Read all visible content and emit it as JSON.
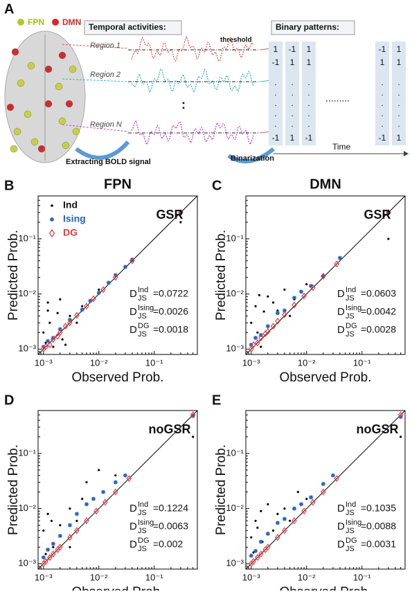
{
  "panel_a": {
    "label": "A",
    "legend": [
      "FPN",
      "DMN"
    ],
    "temporal_title": "Temporal activities:",
    "binary_title": "Binary patterns:",
    "regions": [
      "Region 1",
      "Region 2",
      "Region N"
    ],
    "threshold": "threshold",
    "extract": "Extracting BOLD signal",
    "binarization": "Binarization",
    "time": "Time",
    "vdots": ":",
    "hdots": ".........",
    "dot": ".",
    "matrix_left": [
      [
        "1",
        "-1",
        "1"
      ],
      [
        "-1",
        "1",
        "1"
      ],
      [
        "-1",
        "1",
        "-1"
      ]
    ],
    "matrix_right": [
      [
        "-1",
        "1"
      ],
      [
        "1",
        "1"
      ],
      [
        "-1",
        "1"
      ]
    ]
  },
  "chart_data": [
    {
      "type": "scatter",
      "panel": "B",
      "title": "FPN",
      "subtitle": "GSR",
      "xlabel": "Observed Prob.",
      "ylabel": "Predicted Prob.",
      "log_scale": true,
      "legend": true,
      "xlim": [
        0.0008,
        0.6
      ],
      "ylim": [
        0.0008,
        0.6
      ],
      "xticks": [
        {
          "value": 0.001,
          "label": "10⁻³"
        },
        {
          "value": 0.01,
          "label": "10⁻²"
        },
        {
          "value": 0.1,
          "label": "10⁻¹"
        }
      ],
      "yticks": [
        {
          "value": 0.001,
          "label": "10⁻³"
        },
        {
          "value": 0.01,
          "label": "10⁻²"
        },
        {
          "value": 0.1,
          "label": "10⁻¹"
        }
      ],
      "series": [
        {
          "name": "Ind",
          "color": "#000000",
          "marker": "dot",
          "x": [
            0.001,
            0.0012,
            0.0015,
            0.002,
            0.0013,
            0.0011,
            0.0025,
            0.003,
            0.004,
            0.005,
            0.0012,
            0.01,
            0.04,
            0.3,
            0.0018,
            0.0022
          ],
          "y": [
            0.002,
            0.005,
            0.0011,
            0.008,
            0.003,
            0.0013,
            0.0012,
            0.004,
            0.003,
            0.006,
            0.007,
            0.012,
            0.04,
            0.2,
            0.0045,
            0.0015
          ]
        },
        {
          "name": "Ising",
          "color": "#2563c6",
          "marker": "asterisk",
          "x": [
            0.001,
            0.0012,
            0.0015,
            0.002,
            0.003,
            0.005,
            0.007,
            0.01,
            0.015,
            0.02,
            0.03,
            0.04,
            0.3
          ],
          "y": [
            0.0011,
            0.0014,
            0.0016,
            0.0023,
            0.0034,
            0.0052,
            0.0075,
            0.0105,
            0.016,
            0.022,
            0.031,
            0.042,
            0.31
          ]
        },
        {
          "name": "DG",
          "color": "#e8383d",
          "marker": "diamond",
          "x": [
            0.001,
            0.0011,
            0.0013,
            0.0015,
            0.0018,
            0.002,
            0.0025,
            0.003,
            0.004,
            0.006,
            0.008,
            0.012,
            0.02,
            0.04,
            0.3
          ],
          "y": [
            0.001,
            0.0011,
            0.0012,
            0.0015,
            0.0017,
            0.002,
            0.0026,
            0.003,
            0.0041,
            0.006,
            0.0082,
            0.012,
            0.02,
            0.04,
            0.3
          ]
        }
      ],
      "stats": [
        {
          "symbol": "D",
          "sup": "Ind",
          "sub": "JS",
          "text": "=0.0722"
        },
        {
          "symbol": "D",
          "sup": "Ising",
          "sub": "JS",
          "text": "=0.0026"
        },
        {
          "symbol": "D",
          "sup": "DG",
          "sub": "JS",
          "text": "=0.0018"
        }
      ]
    },
    {
      "type": "scatter",
      "panel": "C",
      "title": "DMN",
      "subtitle": "GSR",
      "xlabel": "Observed Prob.",
      "ylabel": "Predicted Prob.",
      "log_scale": true,
      "legend": false,
      "xlim": [
        0.0008,
        0.6
      ],
      "ylim": [
        0.0008,
        0.6
      ],
      "xticks": [
        {
          "value": 0.001,
          "label": "10⁻³"
        },
        {
          "value": 0.01,
          "label": "10⁻²"
        },
        {
          "value": 0.1,
          "label": "10⁻¹"
        }
      ],
      "yticks": [
        {
          "value": 0.001,
          "label": "10⁻³"
        },
        {
          "value": 0.01,
          "label": "10⁻²"
        },
        {
          "value": 0.1,
          "label": "10⁻¹"
        }
      ],
      "series": [
        {
          "color": "#000000",
          "marker": "dot",
          "x": [
            0.001,
            0.0012,
            0.0015,
            0.002,
            0.0013,
            0.0025,
            0.003,
            0.004,
            0.005,
            0.006,
            0.01,
            0.3,
            0.0017,
            0.0014
          ],
          "y": [
            0.003,
            0.006,
            0.0011,
            0.009,
            0.002,
            0.007,
            0.005,
            0.012,
            0.004,
            0.008,
            0.015,
            0.1,
            0.0048,
            0.0095
          ]
        },
        {
          "color": "#2563c6",
          "marker": "asterisk",
          "x": [
            0.001,
            0.0012,
            0.0015,
            0.002,
            0.003,
            0.004,
            0.006,
            0.008,
            0.012,
            0.02,
            0.04,
            0.3
          ],
          "y": [
            0.0012,
            0.0016,
            0.0018,
            0.0026,
            0.0045,
            0.005,
            0.0085,
            0.011,
            0.014,
            0.021,
            0.045,
            0.3
          ]
        },
        {
          "color": "#e8383d",
          "marker": "diamond",
          "x": [
            0.001,
            0.0011,
            0.0013,
            0.0015,
            0.0018,
            0.002,
            0.0025,
            0.003,
            0.004,
            0.006,
            0.009,
            0.013,
            0.02,
            0.035,
            0.3
          ],
          "y": [
            0.001,
            0.0012,
            0.0013,
            0.0016,
            0.0019,
            0.0021,
            0.0026,
            0.0032,
            0.0042,
            0.0063,
            0.0092,
            0.013,
            0.021,
            0.035,
            0.3
          ]
        }
      ],
      "stats": [
        {
          "symbol": "D",
          "sup": "Ind",
          "sub": "JS",
          "text": "=0.0603"
        },
        {
          "symbol": "D",
          "sup": "Ising",
          "sub": "JS",
          "text": "=0.0042"
        },
        {
          "symbol": "D",
          "sup": "DG",
          "sub": "JS",
          "text": "=0.0028"
        }
      ]
    },
    {
      "type": "scatter",
      "panel": "D",
      "subtitle": "noGSR",
      "xlabel": "Observed Prob.",
      "ylabel": "Predicted Prob.",
      "log_scale": true,
      "legend": false,
      "xlim": [
        0.0008,
        0.6
      ],
      "ylim": [
        0.0008,
        0.6
      ],
      "xticks": [
        {
          "value": 0.001,
          "label": "10⁻³"
        },
        {
          "value": 0.01,
          "label": "10⁻²"
        },
        {
          "value": 0.1,
          "label": "10⁻¹"
        }
      ],
      "yticks": [
        {
          "value": 0.001,
          "label": "10⁻³"
        },
        {
          "value": 0.01,
          "label": "10⁻²"
        },
        {
          "value": 0.1,
          "label": "10⁻¹"
        }
      ],
      "series": [
        {
          "color": "#000000",
          "marker": "dot",
          "x": [
            0.001,
            0.0012,
            0.0015,
            0.002,
            0.003,
            0.004,
            0.005,
            0.006,
            0.01,
            0.02,
            0.0011,
            0.5,
            0.0014,
            0.003
          ],
          "y": [
            0.004,
            0.008,
            0.002,
            0.005,
            0.01,
            0.006,
            0.015,
            0.03,
            0.05,
            0.04,
            0.0015,
            0.2,
            0.006,
            0.002
          ]
        },
        {
          "color": "#2563c6",
          "marker": "asterisk",
          "x": [
            0.001,
            0.0012,
            0.0015,
            0.002,
            0.003,
            0.004,
            0.006,
            0.008,
            0.012,
            0.02,
            0.03,
            0.5
          ],
          "y": [
            0.0013,
            0.0018,
            0.0023,
            0.0032,
            0.005,
            0.008,
            0.012,
            0.015,
            0.02,
            0.03,
            0.04,
            0.48
          ]
        },
        {
          "color": "#e8383d",
          "marker": "diamond",
          "x": [
            0.001,
            0.0011,
            0.0013,
            0.0015,
            0.0018,
            0.002,
            0.003,
            0.004,
            0.006,
            0.009,
            0.013,
            0.02,
            0.035,
            0.5
          ],
          "y": [
            0.001,
            0.0011,
            0.0013,
            0.0015,
            0.0018,
            0.002,
            0.003,
            0.004,
            0.006,
            0.009,
            0.013,
            0.02,
            0.035,
            0.5
          ]
        }
      ],
      "stats": [
        {
          "symbol": "D",
          "sup": "Ind",
          "sub": "JS",
          "text": "=0.1224"
        },
        {
          "symbol": "D",
          "sup": "Ising",
          "sub": "JS",
          "text": "=0.0063"
        },
        {
          "symbol": "D",
          "sup": "DG",
          "sub": "JS",
          "text": "=0.002"
        }
      ]
    },
    {
      "type": "scatter",
      "panel": "E",
      "subtitle": "noGSR",
      "xlabel": "Observed Prob.",
      "ylabel": "Predicted Prob.",
      "log_scale": true,
      "legend": false,
      "xlim": [
        0.0008,
        0.6
      ],
      "ylim": [
        0.0008,
        0.6
      ],
      "xticks": [
        {
          "value": 0.001,
          "label": "10⁻³"
        },
        {
          "value": 0.01,
          "label": "10⁻²"
        },
        {
          "value": 0.1,
          "label": "10⁻¹"
        }
      ],
      "yticks": [
        {
          "value": 0.001,
          "label": "10⁻³"
        },
        {
          "value": 0.01,
          "label": "10⁻²"
        },
        {
          "value": 0.1,
          "label": "10⁻¹"
        }
      ],
      "series": [
        {
          "color": "#000000",
          "marker": "dot",
          "x": [
            0.001,
            0.0012,
            0.0015,
            0.002,
            0.003,
            0.004,
            0.005,
            0.007,
            0.01,
            0.0011,
            0.0013,
            0.5,
            0.0016,
            0.0025
          ],
          "y": [
            0.003,
            0.006,
            0.009,
            0.012,
            0.008,
            0.01,
            0.006,
            0.02,
            0.015,
            0.0016,
            0.0045,
            0.2,
            0.0025,
            0.004
          ]
        },
        {
          "color": "#2563c6",
          "marker": "asterisk",
          "x": [
            0.001,
            0.0012,
            0.0015,
            0.002,
            0.003,
            0.004,
            0.006,
            0.008,
            0.012,
            0.02,
            0.03,
            0.5
          ],
          "y": [
            0.0014,
            0.0017,
            0.0025,
            0.0035,
            0.0055,
            0.0065,
            0.01,
            0.012,
            0.016,
            0.028,
            0.04,
            0.46
          ]
        },
        {
          "color": "#e8383d",
          "marker": "diamond",
          "x": [
            0.001,
            0.0011,
            0.0013,
            0.0015,
            0.0018,
            0.002,
            0.003,
            0.004,
            0.006,
            0.009,
            0.013,
            0.02,
            0.035,
            0.5
          ],
          "y": [
            0.001,
            0.0011,
            0.0013,
            0.0015,
            0.0018,
            0.002,
            0.003,
            0.004,
            0.006,
            0.009,
            0.013,
            0.02,
            0.035,
            0.5
          ]
        }
      ],
      "stats": [
        {
          "symbol": "D",
          "sup": "Ind",
          "sub": "JS",
          "text": "=0.1035"
        },
        {
          "symbol": "D",
          "sup": "Ising",
          "sub": "JS",
          "text": "=0.0088"
        },
        {
          "symbol": "D",
          "sup": "DG",
          "sub": "JS",
          "text": "=0.0031"
        }
      ]
    }
  ]
}
